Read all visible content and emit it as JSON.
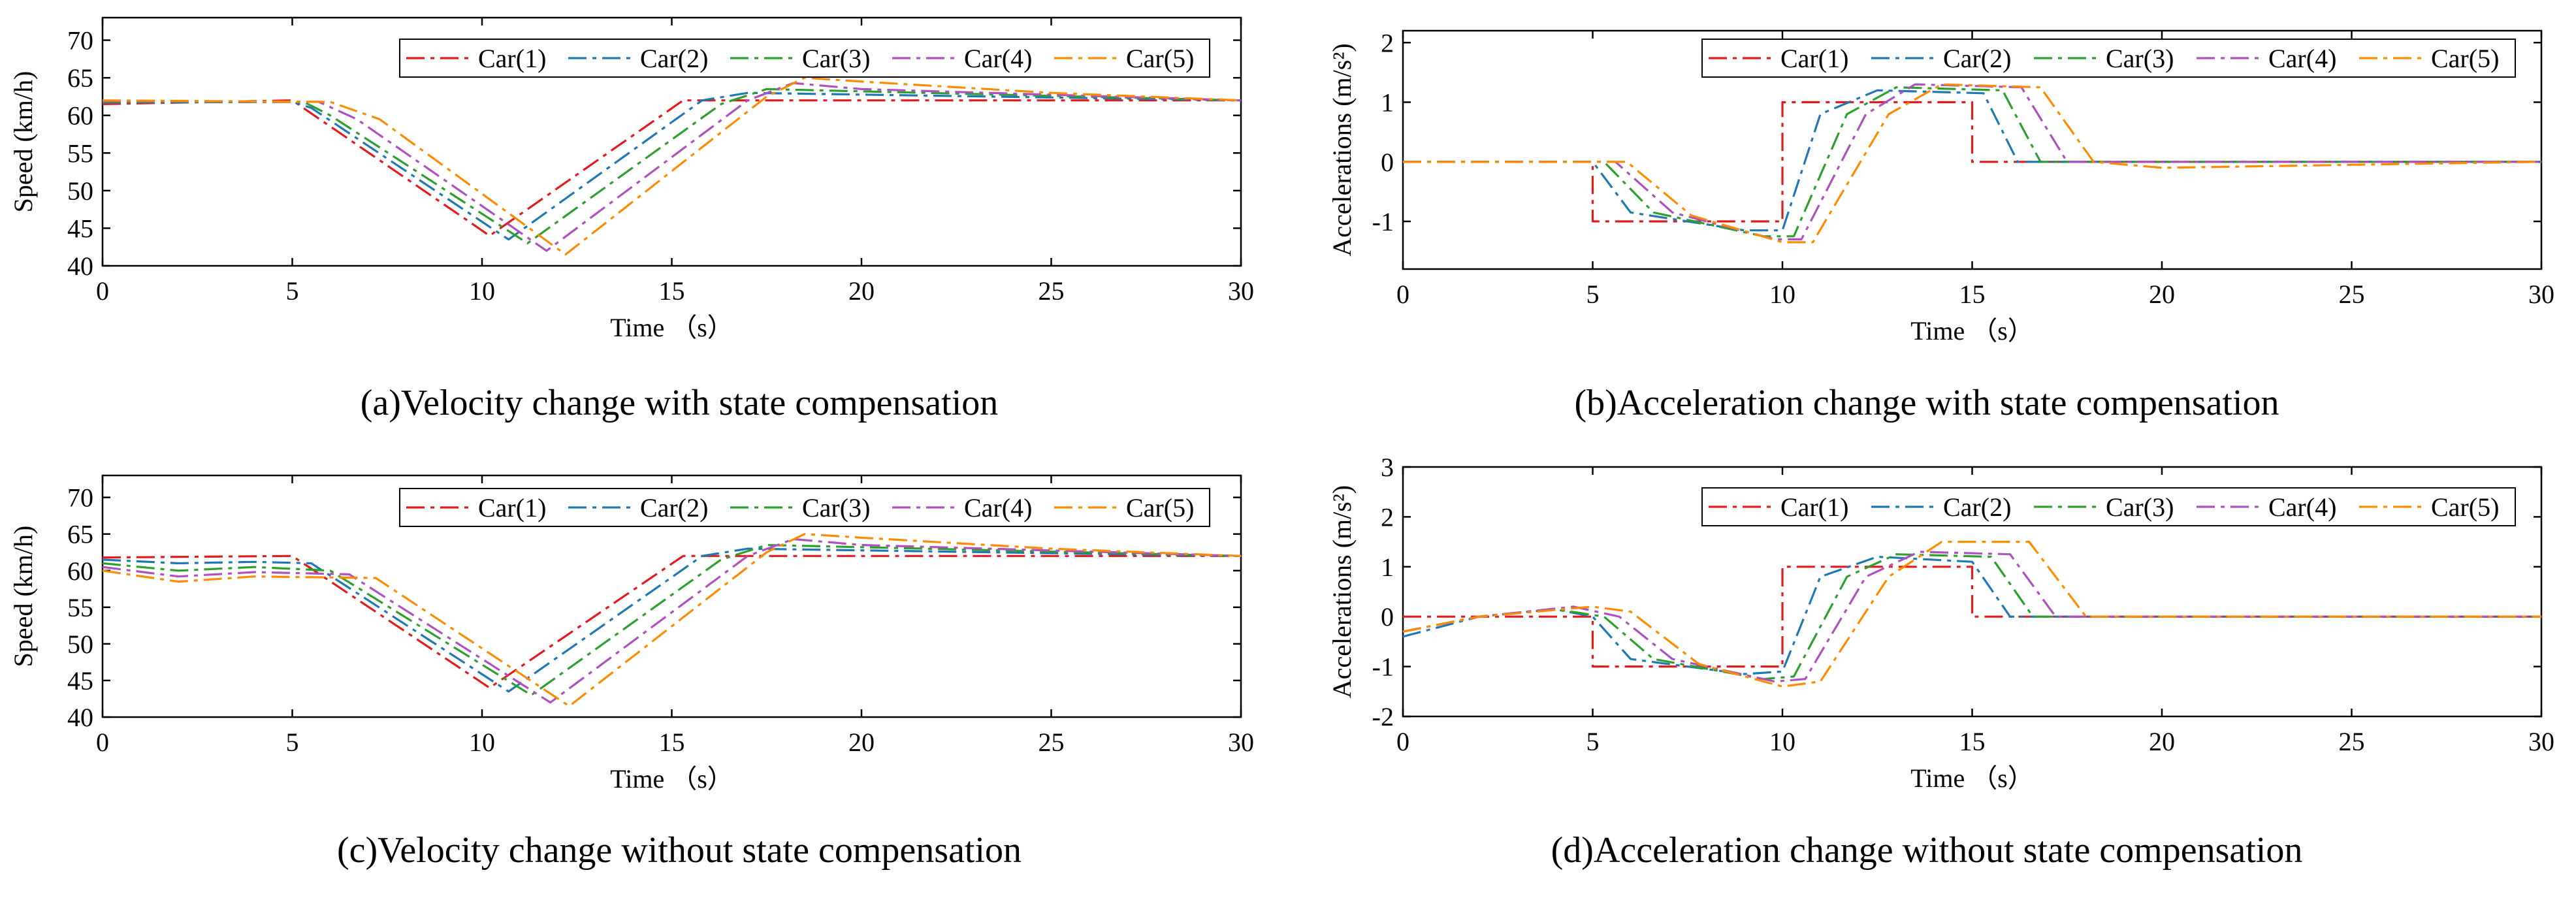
{
  "figure": {
    "legend_labels": [
      "Car(1)",
      "Car(2)",
      "Car(3)",
      "Car(4)",
      "Car(5)"
    ],
    "series_colors": [
      "#e41a1c",
      "#1f77b4",
      "#2ca02c",
      "#b050c0",
      "#ff8c00"
    ]
  },
  "chart_data": [
    {
      "id": "a",
      "type": "line",
      "caption": "(a)Velocity change with state compensation",
      "xlabel": "Time （s）",
      "ylabel": "Speed (km/h)",
      "xlim": [
        0,
        30
      ],
      "ylim": [
        40,
        73
      ],
      "xticks": [
        0,
        5,
        10,
        15,
        20,
        25,
        30
      ],
      "yticks": [
        40,
        45,
        50,
        55,
        60,
        65,
        70
      ],
      "legend": "top-right",
      "series": [
        {
          "name": "Car(1)",
          "points": [
            [
              0,
              61.5
            ],
            [
              5,
              62
            ],
            [
              10.2,
              44
            ],
            [
              15.3,
              62
            ],
            [
              30,
              62
            ]
          ]
        },
        {
          "name": "Car(2)",
          "points": [
            [
              0,
              61.7
            ],
            [
              5,
              61.8
            ],
            [
              5.5,
              61
            ],
            [
              10.7,
              43.5
            ],
            [
              15.8,
              62
            ],
            [
              17,
              63
            ],
            [
              30,
              62
            ]
          ]
        },
        {
          "name": "Car(3)",
          "points": [
            [
              0,
              61.8
            ],
            [
              5.3,
              61.8
            ],
            [
              6,
              60
            ],
            [
              11.2,
              43
            ],
            [
              16.3,
              61.5
            ],
            [
              17.5,
              63.5
            ],
            [
              30,
              62
            ]
          ]
        },
        {
          "name": "Car(4)",
          "points": [
            [
              0,
              61.9
            ],
            [
              5.7,
              61.8
            ],
            [
              6.7,
              59.5
            ],
            [
              11.7,
              42
            ],
            [
              17,
              62
            ],
            [
              18.2,
              64.3
            ],
            [
              20,
              63.5
            ],
            [
              30,
              62
            ]
          ]
        },
        {
          "name": "Car(5)",
          "points": [
            [
              0,
              62
            ],
            [
              6,
              61.8
            ],
            [
              7.3,
              59.5
            ],
            [
              12.2,
              41.5
            ],
            [
              17.5,
              62.5
            ],
            [
              18.5,
              65
            ],
            [
              20,
              64.5
            ],
            [
              25,
              63
            ],
            [
              30,
              62
            ]
          ]
        }
      ]
    },
    {
      "id": "b",
      "type": "line",
      "caption": "(b)Acceleration change with state compensation",
      "xlabel": "Time （s）",
      "ylabel": "Accelerations (m/s²)",
      "xlim": [
        0,
        30
      ],
      "ylim": [
        -1.8,
        2.2
      ],
      "xticks": [
        0,
        5,
        10,
        15,
        20,
        25,
        30
      ],
      "yticks": [
        -1,
        0,
        1,
        2
      ],
      "legend": "top-right",
      "series": [
        {
          "name": "Car(1)",
          "points": [
            [
              0,
              0
            ],
            [
              5,
              0
            ],
            [
              5,
              -1
            ],
            [
              10,
              -1
            ],
            [
              10,
              1
            ],
            [
              15,
              1
            ],
            [
              15,
              0
            ],
            [
              30,
              0
            ]
          ]
        },
        {
          "name": "Car(2)",
          "points": [
            [
              0,
              0
            ],
            [
              5,
              0
            ],
            [
              6,
              -0.85
            ],
            [
              9,
              -1.15
            ],
            [
              10,
              -1.15
            ],
            [
              11,
              0.8
            ],
            [
              12.5,
              1.2
            ],
            [
              15.3,
              1.15
            ],
            [
              16.2,
              0
            ],
            [
              30,
              0
            ]
          ]
        },
        {
          "name": "Car(3)",
          "points": [
            [
              0,
              0
            ],
            [
              5.3,
              0
            ],
            [
              6.6,
              -0.85
            ],
            [
              9.5,
              -1.25
            ],
            [
              10.3,
              -1.25
            ],
            [
              11.7,
              0.8
            ],
            [
              13,
              1.25
            ],
            [
              15.8,
              1.2
            ],
            [
              16.8,
              0
            ],
            [
              30,
              0
            ]
          ]
        },
        {
          "name": "Car(4)",
          "points": [
            [
              0,
              0
            ],
            [
              5.6,
              0
            ],
            [
              7.1,
              -0.85
            ],
            [
              9.8,
              -1.3
            ],
            [
              10.5,
              -1.3
            ],
            [
              12.2,
              0.8
            ],
            [
              13.5,
              1.3
            ],
            [
              16.3,
              1.25
            ],
            [
              17.5,
              0
            ],
            [
              30,
              0
            ]
          ]
        },
        {
          "name": "Car(5)",
          "points": [
            [
              0,
              0
            ],
            [
              5.9,
              0
            ],
            [
              7.6,
              -0.9
            ],
            [
              10,
              -1.35
            ],
            [
              10.8,
              -1.35
            ],
            [
              12.8,
              0.8
            ],
            [
              14.2,
              1.3
            ],
            [
              16.8,
              1.25
            ],
            [
              18.2,
              0
            ],
            [
              20,
              -0.1
            ],
            [
              30,
              0
            ]
          ]
        }
      ]
    },
    {
      "id": "c",
      "type": "line",
      "caption": "(c)Velocity change without state compensation",
      "xlabel": "Time （s）",
      "ylabel": "Speed (km/h)",
      "xlim": [
        0,
        30
      ],
      "ylim": [
        40,
        73
      ],
      "xticks": [
        0,
        5,
        10,
        15,
        20,
        25,
        30
      ],
      "yticks": [
        40,
        45,
        50,
        55,
        60,
        65,
        70
      ],
      "legend": "top-right",
      "series": [
        {
          "name": "Car(1)",
          "points": [
            [
              0,
              61.8
            ],
            [
              5,
              62
            ],
            [
              10.2,
              44
            ],
            [
              15.3,
              62
            ],
            [
              30,
              62
            ]
          ]
        },
        {
          "name": "Car(2)",
          "points": [
            [
              0,
              61.5
            ],
            [
              2,
              61
            ],
            [
              4,
              61.2
            ],
            [
              5.5,
              61
            ],
            [
              10.7,
              43.5
            ],
            [
              15.8,
              62
            ],
            [
              17,
              63
            ],
            [
              30,
              62
            ]
          ]
        },
        {
          "name": "Car(3)",
          "points": [
            [
              0,
              61
            ],
            [
              2,
              60
            ],
            [
              4,
              60.5
            ],
            [
              6,
              60
            ],
            [
              11.3,
              43
            ],
            [
              16.3,
              61.5
            ],
            [
              17.5,
              63.5
            ],
            [
              30,
              62
            ]
          ]
        },
        {
          "name": "Car(4)",
          "points": [
            [
              0,
              60.5
            ],
            [
              2,
              59.2
            ],
            [
              4,
              59.8
            ],
            [
              6.5,
              59.5
            ],
            [
              11.8,
              42
            ],
            [
              17,
              62
            ],
            [
              18.2,
              64.3
            ],
            [
              20,
              63.5
            ],
            [
              30,
              62
            ]
          ]
        },
        {
          "name": "Car(5)",
          "points": [
            [
              0,
              60
            ],
            [
              2,
              58.5
            ],
            [
              4,
              59.2
            ],
            [
              7.2,
              59
            ],
            [
              12.3,
              41.5
            ],
            [
              17.5,
              62.5
            ],
            [
              18.5,
              65
            ],
            [
              20,
              64.5
            ],
            [
              25,
              63
            ],
            [
              30,
              62
            ]
          ]
        }
      ]
    },
    {
      "id": "d",
      "type": "line",
      "caption": "(d)Acceleration change without state compensation",
      "xlabel": "Time （s）",
      "ylabel": "Accelerations (m/s²)",
      "xlim": [
        0,
        30
      ],
      "ylim": [
        -2,
        3
      ],
      "xticks": [
        0,
        5,
        10,
        15,
        20,
        25,
        30
      ],
      "yticks": [
        -2,
        -1,
        0,
        1,
        2,
        3
      ],
      "legend": "top-right",
      "series": [
        {
          "name": "Car(1)",
          "points": [
            [
              0,
              0
            ],
            [
              5,
              0
            ],
            [
              5,
              -1
            ],
            [
              10,
              -1
            ],
            [
              10,
              1
            ],
            [
              15,
              1
            ],
            [
              15,
              0
            ],
            [
              30,
              0
            ]
          ]
        },
        {
          "name": "Car(2)",
          "points": [
            [
              0,
              -0.4
            ],
            [
              2,
              0
            ],
            [
              4,
              0.15
            ],
            [
              5,
              0
            ],
            [
              6,
              -0.85
            ],
            [
              9,
              -1.15
            ],
            [
              10,
              -1.1
            ],
            [
              11,
              0.8
            ],
            [
              12.5,
              1.2
            ],
            [
              15,
              1.1
            ],
            [
              16,
              0
            ],
            [
              30,
              0
            ]
          ]
        },
        {
          "name": "Car(3)",
          "points": [
            [
              0,
              -0.3
            ],
            [
              2,
              0
            ],
            [
              4,
              0.15
            ],
            [
              5.3,
              0
            ],
            [
              6.6,
              -0.85
            ],
            [
              9.5,
              -1.25
            ],
            [
              10.3,
              -1.2
            ],
            [
              11.7,
              0.8
            ],
            [
              13,
              1.25
            ],
            [
              15.5,
              1.2
            ],
            [
              16.6,
              0
            ],
            [
              30,
              0
            ]
          ]
        },
        {
          "name": "Car(4)",
          "points": [
            [
              0,
              -0.3
            ],
            [
              2,
              0
            ],
            [
              4.5,
              0.2
            ],
            [
              5.7,
              0
            ],
            [
              7.1,
              -0.85
            ],
            [
              9.8,
              -1.3
            ],
            [
              10.6,
              -1.25
            ],
            [
              12.2,
              0.8
            ],
            [
              13.6,
              1.3
            ],
            [
              16,
              1.25
            ],
            [
              17.2,
              0
            ],
            [
              30,
              0
            ]
          ]
        },
        {
          "name": "Car(5)",
          "points": [
            [
              0,
              -0.3
            ],
            [
              2,
              0
            ],
            [
              5,
              0.2
            ],
            [
              6,
              0.1
            ],
            [
              7.8,
              -0.95
            ],
            [
              10,
              -1.4
            ],
            [
              11,
              -1.3
            ],
            [
              12.8,
              0.8
            ],
            [
              14.2,
              1.5
            ],
            [
              16.5,
              1.5
            ],
            [
              18,
              0
            ],
            [
              30,
              0
            ]
          ]
        }
      ]
    }
  ]
}
